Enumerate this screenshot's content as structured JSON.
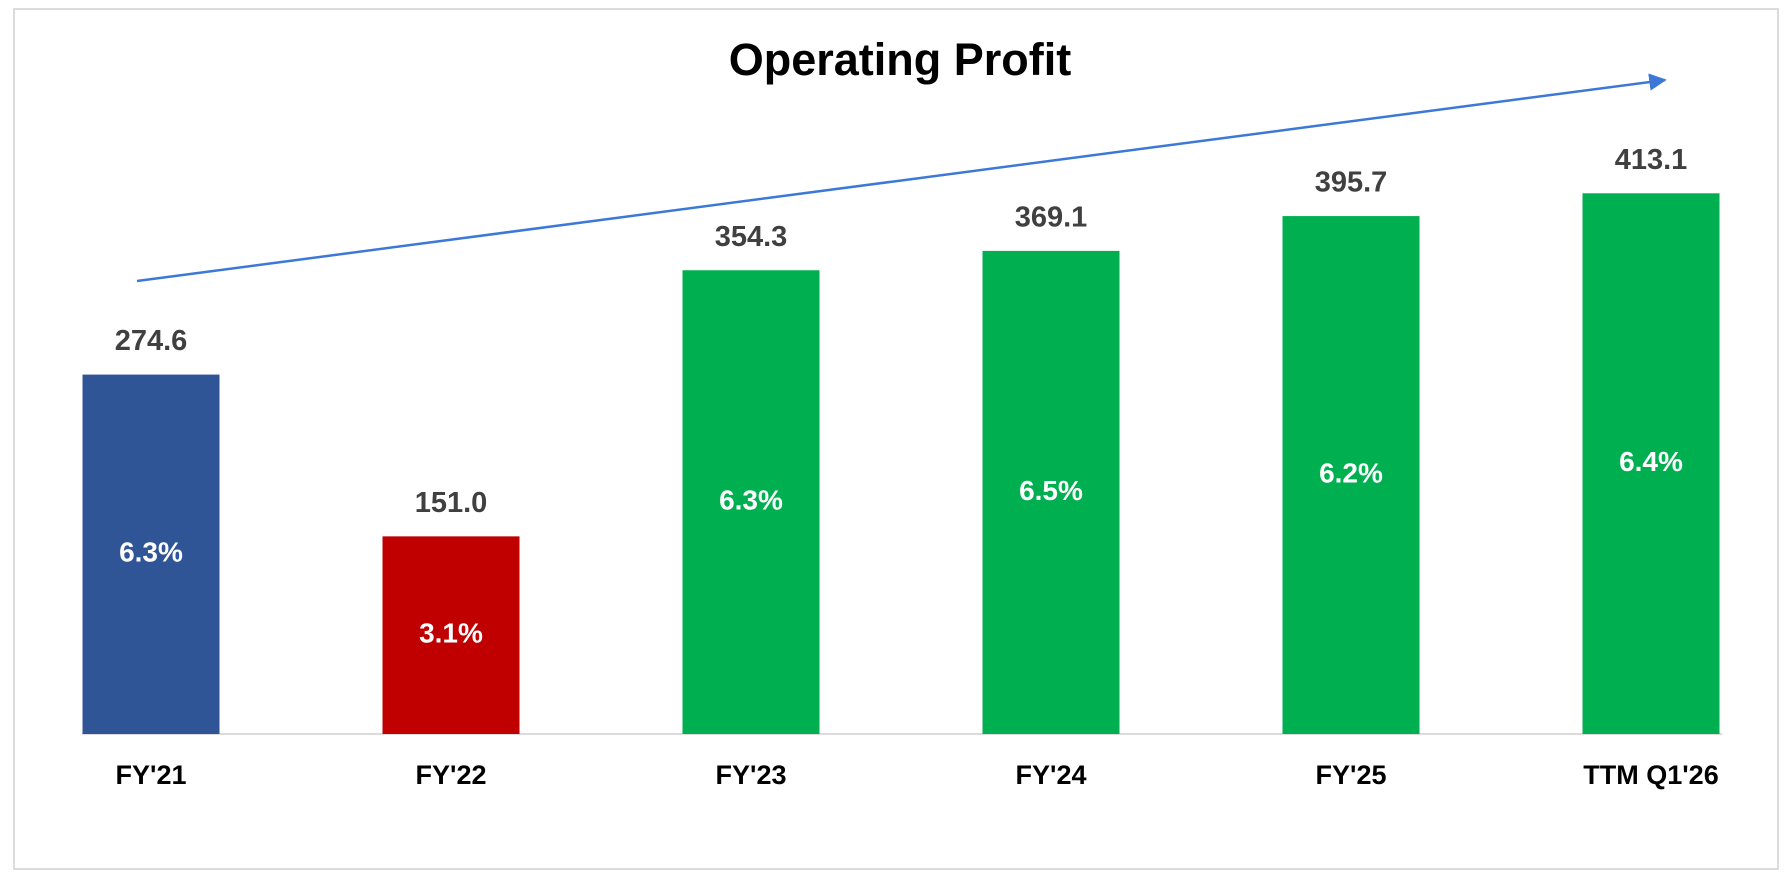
{
  "chart_data": {
    "type": "bar",
    "title": "Operating Profit",
    "categories": [
      "FY'21",
      "FY'22",
      "FY'23",
      "FY'24",
      "FY'25",
      "TTM Q1'26"
    ],
    "values": [
      274.6,
      151.0,
      354.3,
      369.1,
      395.7,
      413.1
    ],
    "value_labels": [
      "274.6",
      "151.0",
      "354.3",
      "369.1",
      "395.7",
      "413.1"
    ],
    "colors": [
      "#2f5597",
      "#c00000",
      "#00b050",
      "#00b050",
      "#00b050",
      "#00b050"
    ],
    "margins": [
      6.3,
      3.1,
      6.3,
      6.5,
      6.2,
      6.4
    ],
    "margin_labels": [
      "6.3%",
      "3.1%",
      "6.3%",
      "6.5%",
      "6.2%",
      "6.4%"
    ],
    "ylim": [
      0,
      450
    ]
  }
}
